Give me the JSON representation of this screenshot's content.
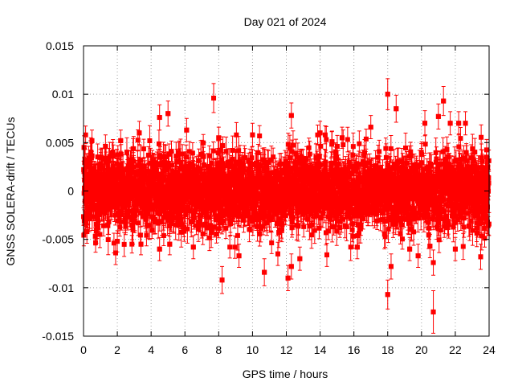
{
  "chart_data": {
    "type": "scatter",
    "title": "Day 021 of 2024",
    "xlabel": "GPS time / hours",
    "ylabel": "GNSS SOLERA-drift / TECUs",
    "xlim": [
      0,
      24
    ],
    "ylim": [
      -0.015,
      0.015
    ],
    "x_ticks": [
      0,
      2,
      4,
      6,
      8,
      10,
      12,
      14,
      16,
      18,
      20,
      22,
      24
    ],
    "x_tick_labels": [
      "0",
      "2",
      "4",
      "6",
      "8",
      "10",
      "12",
      "14",
      "16",
      "18",
      "20",
      "22",
      "24"
    ],
    "y_ticks": [
      -0.015,
      -0.01,
      -0.005,
      0,
      0.005,
      0.01,
      0.015
    ],
    "y_tick_labels": [
      "-0.015",
      "-0.01",
      "-0.005",
      "0",
      "0.005",
      "0.01",
      "0.015"
    ],
    "grid": true,
    "series": [
      {
        "color": "#ff0000",
        "marker": "square",
        "error_bars": true,
        "points": [
          {
            "x": 0.03,
            "y": 0.0045,
            "err": 0.0012
          },
          {
            "x": 0.1,
            "y": 0.0032,
            "err": 0.0011
          },
          {
            "x": 0.12,
            "y": -0.0033,
            "err": 0.0011
          },
          {
            "x": 0.2,
            "y": -0.0042,
            "err": 0.0012
          },
          {
            "x": 0.5,
            "y": 0.0052,
            "err": 0.0011
          },
          {
            "x": 0.8,
            "y": -0.0038,
            "err": 0.0011
          },
          {
            "x": 1.3,
            "y": 0.0046,
            "err": 0.0012
          },
          {
            "x": 1.9,
            "y": -0.0064,
            "err": 0.0012
          },
          {
            "x": 2.0,
            "y": -0.0052,
            "err": 0.0011
          },
          {
            "x": 2.2,
            "y": 0.0052,
            "err": 0.0011
          },
          {
            "x": 3.3,
            "y": 0.006,
            "err": 0.0012
          },
          {
            "x": 3.4,
            "y": -0.0055,
            "err": 0.0011
          },
          {
            "x": 4.5,
            "y": 0.0076,
            "err": 0.0013
          },
          {
            "x": 4.5,
            "y": -0.006,
            "err": 0.0012
          },
          {
            "x": 5.0,
            "y": 0.008,
            "err": 0.0013
          },
          {
            "x": 5.1,
            "y": -0.0055,
            "err": 0.0011
          },
          {
            "x": 6.1,
            "y": 0.0063,
            "err": 0.0012
          },
          {
            "x": 6.5,
            "y": -0.0058,
            "err": 0.0012
          },
          {
            "x": 7.7,
            "y": 0.0096,
            "err": 0.0015
          },
          {
            "x": 8.0,
            "y": 0.0055,
            "err": 0.0011
          },
          {
            "x": 8.2,
            "y": -0.0092,
            "err": 0.0014
          },
          {
            "x": 9.2,
            "y": -0.0067,
            "err": 0.0012
          },
          {
            "x": 10.0,
            "y": 0.0058,
            "err": 0.0012
          },
          {
            "x": 10.7,
            "y": -0.0084,
            "err": 0.0014
          },
          {
            "x": 11.5,
            "y": -0.0065,
            "err": 0.0012
          },
          {
            "x": 12.1,
            "y": -0.009,
            "err": 0.0013
          },
          {
            "x": 12.3,
            "y": 0.0078,
            "err": 0.0013
          },
          {
            "x": 12.3,
            "y": -0.0078,
            "err": 0.0013
          },
          {
            "x": 12.8,
            "y": -0.007,
            "err": 0.0012
          },
          {
            "x": 14.0,
            "y": 0.006,
            "err": 0.0012
          },
          {
            "x": 14.4,
            "y": -0.0066,
            "err": 0.0012
          },
          {
            "x": 15.3,
            "y": 0.0055,
            "err": 0.0011
          },
          {
            "x": 16.2,
            "y": -0.0058,
            "err": 0.0012
          },
          {
            "x": 17.0,
            "y": 0.0066,
            "err": 0.0012
          },
          {
            "x": 18.0,
            "y": 0.01,
            "err": 0.0016
          },
          {
            "x": 18.0,
            "y": -0.0107,
            "err": 0.0015
          },
          {
            "x": 18.2,
            "y": -0.0078,
            "err": 0.0013
          },
          {
            "x": 18.5,
            "y": 0.0085,
            "err": 0.0014
          },
          {
            "x": 19.3,
            "y": -0.006,
            "err": 0.0012
          },
          {
            "x": 19.8,
            "y": -0.0067,
            "err": 0.0012
          },
          {
            "x": 20.2,
            "y": 0.007,
            "err": 0.0013
          },
          {
            "x": 20.5,
            "y": -0.0057,
            "err": 0.0012
          },
          {
            "x": 20.7,
            "y": -0.0125,
            "err": 0.0022
          },
          {
            "x": 20.7,
            "y": -0.0074,
            "err": 0.0013
          },
          {
            "x": 21.0,
            "y": 0.0077,
            "err": 0.0013
          },
          {
            "x": 21.3,
            "y": 0.0093,
            "err": 0.0015
          },
          {
            "x": 21.7,
            "y": 0.007,
            "err": 0.0012
          },
          {
            "x": 22.2,
            "y": 0.007,
            "err": 0.0012
          },
          {
            "x": 22.6,
            "y": 0.007,
            "err": 0.0012
          },
          {
            "x": 22.0,
            "y": -0.006,
            "err": 0.0012
          },
          {
            "x": 23.5,
            "y": -0.0068,
            "err": 0.0013
          },
          {
            "x": 23.9,
            "y": -0.0032,
            "err": 0.0012
          },
          {
            "x": 23.9,
            "y": 0.0025,
            "err": 0.0011
          }
        ],
        "dense_band": {
          "x_range": [
            0,
            24
          ],
          "y_range_typical": [
            -0.005,
            0.005
          ],
          "y_mean": 0,
          "y_std": 0.0024,
          "err_typical": 0.0012,
          "point_interval_hours": 0.0083
        }
      }
    ]
  }
}
